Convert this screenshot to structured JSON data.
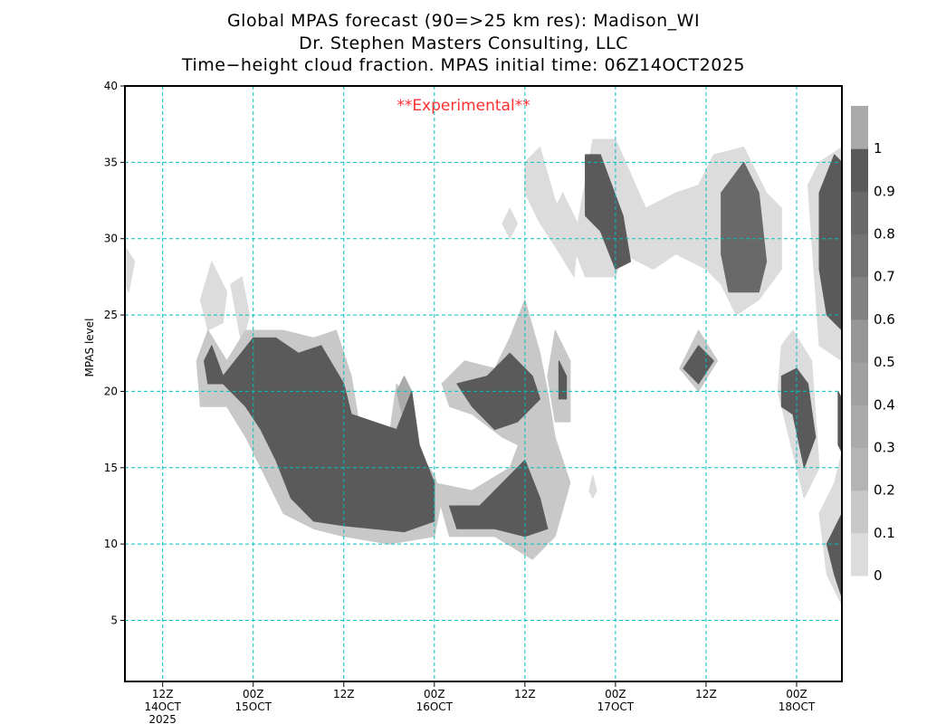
{
  "titles": [
    "Global MPAS forecast (90=>25 km res): Madison_WI",
    "Dr. Stephen Masters Consulting, LLC",
    "Time−height cloud fraction.   MPAS initial time: 06Z14OCT2025"
  ],
  "chart_data": {
    "type": "heatmap",
    "subtype": "filled-contour time-height",
    "title": "Time-height cloud fraction",
    "annotation": "**Experimental**",
    "annotation_color": "#ff3030",
    "xlabel": "",
    "ylabel": "MPAS level",
    "x_units": "forecast hour from 06Z14OCT2025",
    "xlim": [
      1,
      96
    ],
    "ylim": [
      1,
      40
    ],
    "grid": true,
    "grid_color": "#00c0c0",
    "x_ticks": [
      {
        "hour": 6,
        "label": [
          "12Z",
          "14OCT",
          "2025"
        ]
      },
      {
        "hour": 18,
        "label": [
          "00Z",
          "15OCT"
        ]
      },
      {
        "hour": 30,
        "label": [
          "12Z"
        ]
      },
      {
        "hour": 42,
        "label": [
          "00Z",
          "16OCT"
        ]
      },
      {
        "hour": 54,
        "label": [
          "12Z"
        ]
      },
      {
        "hour": 66,
        "label": [
          "00Z",
          "17OCT"
        ]
      },
      {
        "hour": 78,
        "label": [
          "12Z"
        ]
      },
      {
        "hour": 90,
        "label": [
          "00Z",
          "18OCT"
        ]
      }
    ],
    "y_ticks": [
      "5",
      "10",
      "15",
      "20",
      "25",
      "30",
      "35",
      "40"
    ],
    "colorbar": {
      "labels": [
        "0",
        "0.1",
        "0.2",
        "0.3",
        "0.4",
        "0.5",
        "0.6",
        "0.7",
        "0.8",
        "0.9",
        "1"
      ],
      "colors": [
        "#dcdcdc",
        "#c8c8c8",
        "#b4b4b4",
        "#aaaaaa",
        "#a0a0a0",
        "#969696",
        "#828282",
        "#737373",
        "#696969",
        "#5a5a5a",
        "#aaaaaa"
      ]
    },
    "regions": [
      {
        "fraction": 0.05,
        "points": [
          [
            1,
            29.5
          ],
          [
            2.3,
            28.5
          ],
          [
            1.5,
            26.5
          ],
          [
            1,
            27
          ]
        ]
      },
      {
        "fraction": 0.05,
        "points": [
          [
            11,
            26
          ],
          [
            12.5,
            28.5
          ],
          [
            14.5,
            26.5
          ],
          [
            14,
            24.5
          ],
          [
            12,
            24
          ]
        ]
      },
      {
        "fraction": 0.05,
        "points": [
          [
            15,
            27
          ],
          [
            16.5,
            27.5
          ],
          [
            17.5,
            25
          ],
          [
            16.5,
            23
          ]
        ]
      },
      {
        "fraction": 0.05,
        "points": [
          [
            54,
            35
          ],
          [
            56,
            36
          ],
          [
            58,
            32.5
          ],
          [
            61,
            30
          ],
          [
            60.5,
            27.5
          ],
          [
            58,
            29.5
          ],
          [
            56,
            31
          ],
          [
            54,
            33
          ]
        ]
      },
      {
        "fraction": 0.05,
        "points": [
          [
            51,
            31
          ],
          [
            52,
            32
          ],
          [
            53,
            31
          ],
          [
            52,
            30
          ]
        ]
      },
      {
        "fraction": 0.05,
        "points": [
          [
            57.5,
            31.5
          ],
          [
            59,
            33
          ],
          [
            61,
            31
          ],
          [
            63,
            36.5
          ],
          [
            66,
            36.5
          ],
          [
            70,
            32
          ],
          [
            74,
            33
          ],
          [
            77,
            33.5
          ],
          [
            79,
            35.5
          ],
          [
            83,
            36
          ],
          [
            86,
            33
          ],
          [
            88,
            32
          ],
          [
            88,
            28
          ],
          [
            85,
            26
          ],
          [
            82,
            25
          ],
          [
            80,
            27
          ],
          [
            78,
            28
          ],
          [
            74,
            29
          ],
          [
            71,
            28
          ],
          [
            69,
            28.5
          ],
          [
            67,
            29
          ],
          [
            66,
            27.5
          ],
          [
            62,
            27.5
          ],
          [
            60,
            30
          ]
        ]
      },
      {
        "fraction": 0.05,
        "points": [
          [
            88,
            23
          ],
          [
            89.5,
            24
          ],
          [
            92,
            22
          ],
          [
            93,
            15
          ],
          [
            91,
            13
          ],
          [
            89,
            17
          ],
          [
            87.5,
            20
          ]
        ]
      },
      {
        "fraction": 0.05,
        "points": [
          [
            91.5,
            33.5
          ],
          [
            93,
            35
          ],
          [
            96,
            36
          ],
          [
            96,
            22
          ],
          [
            93,
            23
          ]
        ]
      },
      {
        "fraction": 0.05,
        "points": [
          [
            93,
            12
          ],
          [
            95,
            14
          ],
          [
            96,
            16
          ],
          [
            96,
            6
          ],
          [
            94,
            8
          ]
        ]
      },
      {
        "fraction": 0.05,
        "points": [
          [
            63,
            14.5
          ],
          [
            63.5,
            13.5
          ],
          [
            63,
            13
          ],
          [
            62.5,
            13.5
          ]
        ]
      },
      {
        "fraction": 0.15,
        "points": [
          [
            10.5,
            22
          ],
          [
            12,
            24
          ],
          [
            14.5,
            22
          ],
          [
            17,
            24
          ],
          [
            22,
            24
          ],
          [
            26,
            23.5
          ],
          [
            29,
            24
          ],
          [
            31,
            21
          ],
          [
            32,
            18
          ],
          [
            36,
            17
          ],
          [
            37,
            20.5
          ],
          [
            39,
            19
          ],
          [
            40,
            16
          ],
          [
            42,
            14.5
          ],
          [
            43,
            13
          ],
          [
            42,
            10.5
          ],
          [
            36,
            10
          ],
          [
            30,
            10.5
          ],
          [
            26,
            11
          ],
          [
            22,
            12
          ],
          [
            19,
            15
          ],
          [
            17,
            17
          ],
          [
            14.5,
            19
          ],
          [
            11,
            19
          ]
        ]
      },
      {
        "fraction": 0.15,
        "points": [
          [
            42,
            14
          ],
          [
            47,
            13.5
          ],
          [
            52,
            15
          ],
          [
            55,
            19
          ],
          [
            58,
            17
          ],
          [
            60,
            14
          ],
          [
            58,
            10.5
          ],
          [
            55,
            9
          ],
          [
            50,
            10.5
          ],
          [
            44,
            10.5
          ]
        ]
      },
      {
        "fraction": 0.15,
        "points": [
          [
            43,
            20.5
          ],
          [
            46,
            22
          ],
          [
            50,
            21.5
          ],
          [
            52,
            23.5
          ],
          [
            54,
            26
          ],
          [
            56,
            22.5
          ],
          [
            57,
            20
          ],
          [
            58,
            17
          ],
          [
            55,
            16
          ],
          [
            51,
            17
          ],
          [
            47,
            18.5
          ],
          [
            44,
            19
          ]
        ]
      },
      {
        "fraction": 0.15,
        "points": [
          [
            58,
            24
          ],
          [
            60,
            22
          ],
          [
            60,
            18
          ],
          [
            58,
            18
          ],
          [
            57,
            21
          ]
        ]
      },
      {
        "fraction": 0.15,
        "points": [
          [
            74.5,
            21.5
          ],
          [
            77,
            24
          ],
          [
            79.5,
            22
          ],
          [
            77,
            20
          ]
        ]
      },
      {
        "fraction": 0.35,
        "points": [
          [
            38,
            21
          ],
          [
            39,
            20
          ],
          [
            38,
            18
          ],
          [
            37,
            20
          ]
        ]
      },
      {
        "fraction": 0.95,
        "points": [
          [
            11.5,
            22
          ],
          [
            12.5,
            23
          ],
          [
            14,
            21
          ],
          [
            18,
            23.5
          ],
          [
            21,
            23.5
          ],
          [
            24,
            22.5
          ],
          [
            27,
            23
          ],
          [
            30,
            20.5
          ],
          [
            31,
            18.5
          ],
          [
            34,
            18
          ],
          [
            37,
            17.5
          ],
          [
            39,
            20
          ],
          [
            40,
            16.5
          ],
          [
            42,
            14
          ],
          [
            42,
            11.5
          ],
          [
            38,
            10.8
          ],
          [
            34,
            11
          ],
          [
            30,
            11.2
          ],
          [
            26,
            11.5
          ],
          [
            23,
            13
          ],
          [
            21,
            15.5
          ],
          [
            19,
            17.5
          ],
          [
            17,
            19
          ],
          [
            14,
            20.5
          ],
          [
            12,
            20.5
          ]
        ]
      },
      {
        "fraction": 0.95,
        "points": [
          [
            44,
            12.5
          ],
          [
            48,
            12.5
          ],
          [
            51,
            14
          ],
          [
            54,
            15.5
          ],
          [
            56,
            13
          ],
          [
            57,
            11
          ],
          [
            54,
            10.5
          ],
          [
            50,
            11
          ],
          [
            45,
            11
          ]
        ]
      },
      {
        "fraction": 0.95,
        "points": [
          [
            45,
            20.5
          ],
          [
            49,
            21
          ],
          [
            52,
            22.5
          ],
          [
            55,
            21
          ],
          [
            56,
            19.5
          ],
          [
            53,
            18
          ],
          [
            50,
            17.5
          ],
          [
            47,
            19
          ]
        ]
      },
      {
        "fraction": 0.95,
        "points": [
          [
            58.5,
            22
          ],
          [
            59.5,
            21
          ],
          [
            59.5,
            19.5
          ],
          [
            58.5,
            19.5
          ]
        ]
      },
      {
        "fraction": 0.95,
        "points": [
          [
            62,
            35.5
          ],
          [
            64,
            35.5
          ],
          [
            67,
            31.5
          ],
          [
            68,
            28.5
          ],
          [
            66,
            28
          ],
          [
            64,
            30.5
          ],
          [
            62,
            31.5
          ]
        ]
      },
      {
        "fraction": 0.85,
        "points": [
          [
            80,
            33
          ],
          [
            83,
            35
          ],
          [
            85,
            33
          ],
          [
            86,
            28.5
          ],
          [
            85,
            26.5
          ],
          [
            81,
            26.5
          ],
          [
            80,
            29
          ]
        ]
      },
      {
        "fraction": 0.95,
        "points": [
          [
            75,
            21.5
          ],
          [
            77,
            23
          ],
          [
            79,
            22
          ],
          [
            77,
            20.5
          ]
        ]
      },
      {
        "fraction": 0.95,
        "points": [
          [
            88,
            21
          ],
          [
            90,
            21.5
          ],
          [
            91.5,
            20.5
          ],
          [
            92.5,
            17
          ],
          [
            91,
            15
          ],
          [
            89.5,
            18.5
          ],
          [
            88,
            19
          ]
        ]
      },
      {
        "fraction": 0.95,
        "points": [
          [
            93,
            33
          ],
          [
            95,
            35.5
          ],
          [
            96,
            35
          ],
          [
            96,
            24
          ],
          [
            94,
            25
          ],
          [
            93,
            28
          ]
        ]
      },
      {
        "fraction": 0.95,
        "points": [
          [
            94,
            10
          ],
          [
            96,
            12
          ],
          [
            96,
            6.5
          ],
          [
            95,
            8
          ]
        ]
      },
      {
        "fraction": 0.95,
        "points": [
          [
            95.5,
            20
          ],
          [
            96,
            19.5
          ],
          [
            96,
            16
          ],
          [
            95.5,
            16.5
          ]
        ]
      }
    ]
  }
}
